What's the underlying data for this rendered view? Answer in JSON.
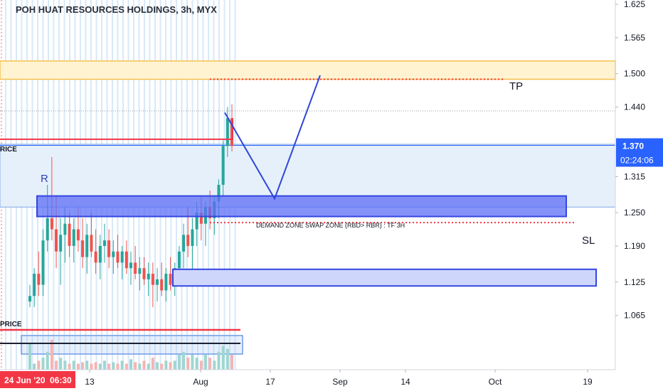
{
  "chart_data": {
    "type": "candlestick",
    "title": "POH HUAT RESOURCES HOLDINGS, 3h, MYX",
    "ylim": [
      1.0,
      1.64
    ],
    "y_ticks": [
      "1.625",
      "1.565",
      "1.500",
      "1.440",
      "1.370",
      "1.315",
      "1.250",
      "1.190",
      "1.125",
      "1.065"
    ],
    "x_ticks": [
      "13",
      "Aug",
      "17",
      "Sep",
      "14",
      "Oct",
      "19"
    ],
    "current_price": "1.370",
    "countdown": "02:24:06",
    "time_label": {
      "date": "24 Jun '20",
      "time": "06:30"
    },
    "annotations": {
      "r": "R",
      "tp": "TP",
      "sl": "SL",
      "zone": "DEMAND ZONE SWAP ZONE (RBD> RBR) : TF 3H",
      "price_upper": "RICE",
      "price_lower": "PRICE"
    },
    "levels": {
      "tp": 1.49,
      "sl": 1.232,
      "red_line": 1.382,
      "projection": [
        1.43,
        1.275,
        1.497
      ]
    },
    "zones": [
      {
        "label": "DEMAND ZONE SWAP ZONE (RBD> RBR) : TF 3H",
        "low": 1.243,
        "high": 1.28
      },
      {
        "label": "",
        "low": 1.118,
        "high": 1.148
      }
    ],
    "supply_band": {
      "low": 1.49,
      "high": 1.523
    },
    "candles_ohlc": [
      [
        1.09,
        1.12,
        1.08,
        1.1
      ],
      [
        1.1,
        1.15,
        1.08,
        1.14
      ],
      [
        1.14,
        1.18,
        1.1,
        1.12
      ],
      [
        1.12,
        1.22,
        1.1,
        1.2
      ],
      [
        1.2,
        1.3,
        1.18,
        1.24
      ],
      [
        1.24,
        1.35,
        1.2,
        1.22
      ],
      [
        1.22,
        1.28,
        1.15,
        1.18
      ],
      [
        1.18,
        1.24,
        1.12,
        1.21
      ],
      [
        1.21,
        1.26,
        1.16,
        1.23
      ],
      [
        1.23,
        1.25,
        1.17,
        1.19
      ],
      [
        1.19,
        1.24,
        1.16,
        1.22
      ],
      [
        1.22,
        1.26,
        1.18,
        1.2
      ],
      [
        1.2,
        1.24,
        1.15,
        1.17
      ],
      [
        1.17,
        1.23,
        1.14,
        1.21
      ],
      [
        1.21,
        1.25,
        1.17,
        1.18
      ],
      [
        1.18,
        1.22,
        1.14,
        1.16
      ],
      [
        1.16,
        1.21,
        1.13,
        1.19
      ],
      [
        1.19,
        1.23,
        1.16,
        1.2
      ],
      [
        1.2,
        1.22,
        1.15,
        1.17
      ],
      [
        1.17,
        1.2,
        1.14,
        1.18
      ],
      [
        1.18,
        1.21,
        1.15,
        1.16
      ],
      [
        1.16,
        1.19,
        1.13,
        1.18
      ],
      [
        1.18,
        1.2,
        1.14,
        1.15
      ],
      [
        1.15,
        1.18,
        1.12,
        1.16
      ],
      [
        1.16,
        1.19,
        1.13,
        1.14
      ],
      [
        1.14,
        1.17,
        1.11,
        1.15
      ],
      [
        1.15,
        1.17,
        1.12,
        1.13
      ],
      [
        1.13,
        1.16,
        1.1,
        1.14
      ],
      [
        1.14,
        1.16,
        1.08,
        1.12
      ],
      [
        1.12,
        1.15,
        1.09,
        1.13
      ],
      [
        1.13,
        1.16,
        1.1,
        1.11
      ],
      [
        1.11,
        1.15,
        1.09,
        1.14
      ],
      [
        1.14,
        1.17,
        1.11,
        1.12
      ],
      [
        1.12,
        1.16,
        1.1,
        1.15
      ],
      [
        1.15,
        1.19,
        1.12,
        1.18
      ],
      [
        1.18,
        1.23,
        1.15,
        1.21
      ],
      [
        1.21,
        1.26,
        1.17,
        1.19
      ],
      [
        1.19,
        1.24,
        1.14,
        1.22
      ],
      [
        1.22,
        1.27,
        1.19,
        1.25
      ],
      [
        1.25,
        1.28,
        1.2,
        1.23
      ],
      [
        1.23,
        1.27,
        1.19,
        1.26
      ],
      [
        1.26,
        1.29,
        1.22,
        1.24
      ],
      [
        1.24,
        1.28,
        1.21,
        1.27
      ],
      [
        1.27,
        1.31,
        1.24,
        1.3
      ],
      [
        1.3,
        1.38,
        1.28,
        1.37
      ],
      [
        1.37,
        1.44,
        1.35,
        1.42
      ],
      [
        1.42,
        1.445,
        1.36,
        1.37
      ]
    ],
    "volume": [
      0.9,
      0.2,
      0.3,
      0.4,
      0.6,
      1.0,
      0.3,
      0.4,
      0.3,
      0.2,
      0.3,
      0.2,
      0.25,
      0.3,
      0.2,
      0.25,
      0.2,
      0.3,
      0.2,
      0.25,
      0.2,
      0.3,
      0.2,
      0.35,
      0.25,
      0.2,
      0.3,
      0.2,
      0.4,
      0.25,
      0.2,
      0.3,
      0.25,
      0.3,
      0.5,
      0.6,
      0.4,
      0.5,
      0.4,
      0.3,
      0.5,
      0.4,
      0.3,
      0.6,
      0.8,
      0.7,
      0.5
    ],
    "colors": {
      "up": "#26a69a",
      "down": "#ef5350",
      "zone_fill": "#5c6df5",
      "zone_stroke": "#3346e0",
      "band_fill": "#fff3d1",
      "band_stroke": "#f5c04d",
      "level": "#f23645",
      "price_tag": "#2962ff",
      "date_tag": "#f23645"
    }
  }
}
